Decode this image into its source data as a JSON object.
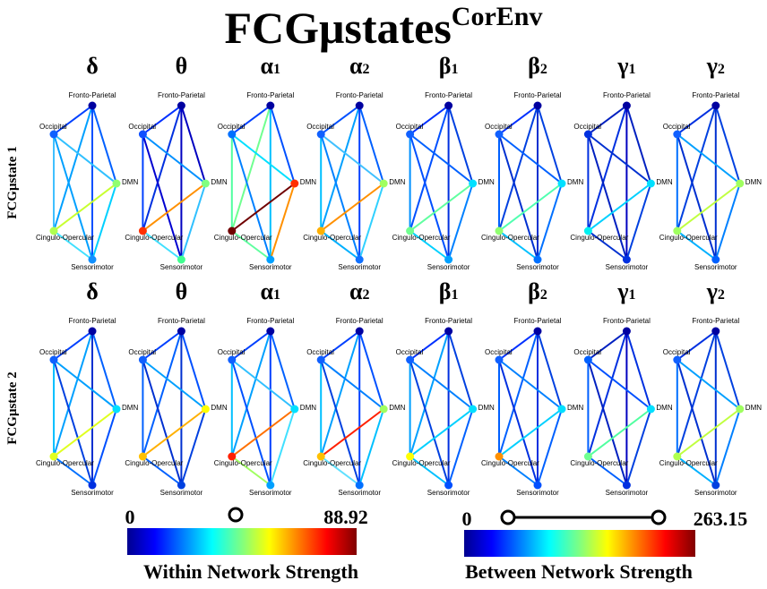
{
  "header": {
    "title": "FCGμstates",
    "superscript": "CorEnv"
  },
  "nodes": [
    "Fronto-Parietal",
    "Occipital",
    "DMN",
    "Cingulo-Opercular",
    "Sensorimotor"
  ],
  "rows": [
    {
      "label": "FCGμstate 1",
      "panels": [
        {
          "symbol": "δ",
          "sub": "",
          "node_colors": [
            "#0000a0",
            "#1060ff",
            "#90ff70",
            "#b0ff50",
            "#1090ff"
          ],
          "edge_colors": [
            "#0040ff",
            "#0060ff",
            "#00a0ff",
            "#0050ff",
            "#30c0ff",
            "#40c0ff",
            "#00a0ff",
            "#c8ff30",
            "#00d0ff",
            "#40e0ff"
          ]
        },
        {
          "symbol": "θ",
          "sub": "",
          "node_colors": [
            "#0000a0",
            "#1050ff",
            "#80ff80",
            "#ff3000",
            "#40ff90"
          ],
          "edge_colors": [
            "#0030ff",
            "#0000c0",
            "#0030e0",
            "#0000c0",
            "#0090ff",
            "#0040ff",
            "#0000d0",
            "#ff9000",
            "#30c0ff",
            "#40e0ff"
          ]
        },
        {
          "symbol": "α",
          "sub": "1",
          "node_colors": [
            "#0000a0",
            "#0070ff",
            "#ff3000",
            "#700000",
            "#00a0ff"
          ],
          "edge_colors": [
            "#0040ff",
            "#0050ff",
            "#70ff90",
            "#00c0ff",
            "#00e0ff",
            "#50ffa0",
            "#0080ff",
            "#700000",
            "#ff9000",
            "#60ffa0"
          ]
        },
        {
          "symbol": "α",
          "sub": "2",
          "node_colors": [
            "#0000a0",
            "#1060ff",
            "#a0ff60",
            "#ffb000",
            "#1070ff"
          ],
          "edge_colors": [
            "#0050ff",
            "#0060ff",
            "#00a0ff",
            "#0040ff",
            "#40c0ff",
            "#00c0ff",
            "#0080ff",
            "#ff9000",
            "#30d0ff",
            "#00b0ff"
          ]
        },
        {
          "symbol": "β",
          "sub": "1",
          "node_colors": [
            "#0000a0",
            "#1060ff",
            "#00e0ff",
            "#70ff90",
            "#00a0ff"
          ],
          "edge_colors": [
            "#0030ff",
            "#0040e0",
            "#0050ff",
            "#0030e0",
            "#0060ff",
            "#0090ff",
            "#0050ff",
            "#60ffa0",
            "#0080ff",
            "#00d0ff"
          ]
        },
        {
          "symbol": "β",
          "sub": "2",
          "node_colors": [
            "#0000a0",
            "#1060ff",
            "#00e0ff",
            "#90ff70",
            "#0070ff"
          ],
          "edge_colors": [
            "#0030ff",
            "#0040e0",
            "#0040e0",
            "#0030d0",
            "#0060ff",
            "#0060ff",
            "#0030d0",
            "#50ffb0",
            "#0070ff",
            "#00c0ff"
          ]
        },
        {
          "symbol": "γ",
          "sub": "1",
          "node_colors": [
            "#0000a0",
            "#0030e0",
            "#00e0ff",
            "#00f0f0",
            "#0030e0"
          ],
          "edge_colors": [
            "#0020c0",
            "#0020c0",
            "#0030e0",
            "#0000c0",
            "#0030d0",
            "#0030e0",
            "#0020c0",
            "#00d0ff",
            "#0040e0",
            "#0030d0"
          ]
        },
        {
          "symbol": "γ",
          "sub": "2",
          "node_colors": [
            "#0000a0",
            "#1060ff",
            "#a0ff60",
            "#a0ff60",
            "#0060ff"
          ],
          "edge_colors": [
            "#0030e0",
            "#0040e0",
            "#0040e0",
            "#0030d0",
            "#00a0ff",
            "#0070ff",
            "#0030d0",
            "#c0ff40",
            "#0080ff",
            "#00b0ff"
          ]
        }
      ]
    },
    {
      "label": "FCGμstate 2",
      "panels": [
        {
          "symbol": "δ",
          "sub": "",
          "node_colors": [
            "#0000a0",
            "#1060ff",
            "#00e0ff",
            "#e0ff20",
            "#0030e0"
          ],
          "edge_colors": [
            "#0040ff",
            "#0060ff",
            "#00a0ff",
            "#0030d0",
            "#00a0ff",
            "#00c0ff",
            "#0040e0",
            "#e0ff20",
            "#0050ff",
            "#0070ff"
          ]
        },
        {
          "symbol": "θ",
          "sub": "",
          "node_colors": [
            "#0000a0",
            "#1060ff",
            "#ffff00",
            "#ffc000",
            "#0040e0"
          ],
          "edge_colors": [
            "#0040ff",
            "#0050ff",
            "#0060ff",
            "#0030d0",
            "#00a0ff",
            "#0060ff",
            "#0030d0",
            "#ffb000",
            "#0040e0",
            "#0060ff"
          ]
        },
        {
          "symbol": "α",
          "sub": "1",
          "node_colors": [
            "#0000a0",
            "#1060ff",
            "#00e0ff",
            "#ff2000",
            "#00a0ff"
          ],
          "edge_colors": [
            "#0040ff",
            "#0060ff",
            "#00a0ff",
            "#0040ff",
            "#30c0ff",
            "#00c0ff",
            "#0050ff",
            "#ff7000",
            "#40e0ff",
            "#a0ff60"
          ]
        },
        {
          "symbol": "α",
          "sub": "2",
          "node_colors": [
            "#0000a0",
            "#1060ff",
            "#a0ff60",
            "#ffc000",
            "#0070ff"
          ],
          "edge_colors": [
            "#0040ff",
            "#0050ff",
            "#00a0ff",
            "#0040ff",
            "#0080ff",
            "#00c0ff",
            "#0040e0",
            "#ff2000",
            "#00c0ff",
            "#60e0ff"
          ]
        },
        {
          "symbol": "β",
          "sub": "1",
          "node_colors": [
            "#0000a0",
            "#1060ff",
            "#00e0ff",
            "#ffff00",
            "#0050ff"
          ],
          "edge_colors": [
            "#0030ff",
            "#0040e0",
            "#00a0ff",
            "#0030e0",
            "#0080ff",
            "#00a0ff",
            "#0040e0",
            "#00d0ff",
            "#0060ff",
            "#00c0ff"
          ]
        },
        {
          "symbol": "β",
          "sub": "2",
          "node_colors": [
            "#0000a0",
            "#1060ff",
            "#00e0ff",
            "#ff9000",
            "#0050ff"
          ],
          "edge_colors": [
            "#0030ff",
            "#0040e0",
            "#0060ff",
            "#0030e0",
            "#0080ff",
            "#0060ff",
            "#0030e0",
            "#00d0ff",
            "#0060ff",
            "#0080ff"
          ]
        },
        {
          "symbol": "γ",
          "sub": "1",
          "node_colors": [
            "#0000a0",
            "#0060ff",
            "#00e0ff",
            "#70ff90",
            "#0030e0"
          ],
          "edge_colors": [
            "#0020c0",
            "#0030e0",
            "#0030e0",
            "#0000c0",
            "#0050ff",
            "#0060ff",
            "#0020c0",
            "#50ffa0",
            "#0040e0",
            "#0060ff"
          ]
        },
        {
          "symbol": "γ",
          "sub": "2",
          "node_colors": [
            "#0000a0",
            "#1060ff",
            "#a0ff60",
            "#b0ff50",
            "#0040e0"
          ],
          "edge_colors": [
            "#0030e0",
            "#0040e0",
            "#0040e0",
            "#0030d0",
            "#00a0ff",
            "#0070ff",
            "#0030d0",
            "#c0ff40",
            "#0080ff",
            "#00b0ff"
          ]
        }
      ]
    }
  ],
  "colorbars": [
    {
      "min": 0,
      "max": 88.92,
      "label": "Within Network Strength"
    },
    {
      "min": 0,
      "max": 263.15,
      "label": "Between Network Strength"
    }
  ]
}
